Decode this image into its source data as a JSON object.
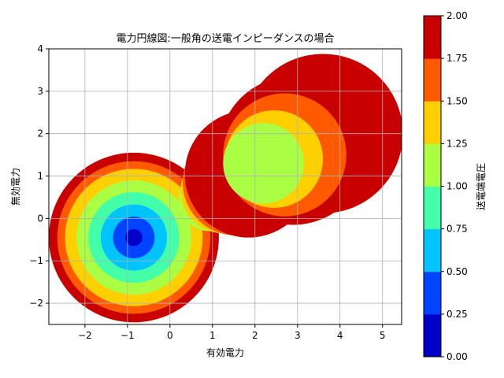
{
  "chart_data": {
    "type": "contour",
    "title": "電力円線図:一般角の送電インピーダンスの場合",
    "xlabel": "有効電力",
    "ylabel": "無効電力",
    "xlim": [
      -2.85,
      5.45
    ],
    "ylim": [
      -2.5,
      4.0
    ],
    "x_ticks": [
      -2,
      -1,
      0,
      1,
      2,
      3,
      4,
      5
    ],
    "y_ticks": [
      -2,
      -1,
      0,
      1,
      2,
      3,
      4
    ],
    "grid": true,
    "colorbar": {
      "label": "送電端電圧",
      "ticks": [
        0.0,
        0.25,
        0.5,
        0.75,
        1.0,
        1.25,
        1.5,
        1.75,
        2.0
      ],
      "tick_labels": [
        "0.00",
        "0.25",
        "0.50",
        "0.75",
        "1.00",
        "1.25",
        "1.50",
        "1.75",
        "2.00"
      ],
      "level_colors": [
        "#0000c8",
        "#0044ff",
        "#00c4ff",
        "#44ffaa",
        "#aaff44",
        "#ffd000",
        "#ff5a00",
        "#c80000"
      ]
    },
    "circle_families": [
      {
        "name": "left family",
        "center": [
          -0.85,
          -0.45
        ],
        "boundaries": [
          {
            "level": 0.25,
            "radius": 0.2
          },
          {
            "level": 0.5,
            "radius": 0.49
          },
          {
            "level": 0.75,
            "radius": 0.78
          },
          {
            "level": 1.0,
            "radius": 1.07
          },
          {
            "level": 1.25,
            "radius": 1.35
          },
          {
            "level": 1.5,
            "radius": 1.62
          },
          {
            "level": 1.75,
            "radius": 1.8
          }
        ],
        "outer_radius": 2.0
      },
      {
        "name": "right family",
        "circles": [
          {
            "center": [
              0.95,
              0.45
            ],
            "radius": 0.75,
            "level": 1.0
          },
          {
            "center": [
              1.25,
              0.65
            ],
            "radius": 1.0,
            "level": 1.25
          },
          {
            "center": [
              1.55,
              0.85
            ],
            "radius": 1.25,
            "level": 1.5
          },
          {
            "center": [
              1.85,
              1.05
            ],
            "radius": 1.5,
            "level": 1.75
          },
          {
            "center": [
              3.6,
              2.0
            ],
            "radius": 1.88,
            "level": 1.75
          },
          {
            "center": [
              2.9,
              1.6
            ],
            "radius": 1.75,
            "level": 1.75
          },
          {
            "center": [
              2.7,
              1.5
            ],
            "radius": 1.45,
            "level": 1.5
          },
          {
            "center": [
              2.45,
              1.4
            ],
            "radius": 1.15,
            "level": 1.25
          },
          {
            "center": [
              2.2,
              1.3
            ],
            "radius": 0.95,
            "level": 1.0
          }
        ]
      }
    ]
  }
}
